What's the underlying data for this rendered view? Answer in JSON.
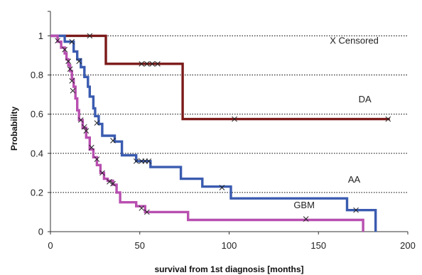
{
  "chart_data": {
    "type": "line",
    "step": true,
    "title": "",
    "xlabel": "survival from 1st diagnosis [months]",
    "ylabel": "Probability",
    "xlim": [
      0,
      200
    ],
    "ylim": [
      0,
      1
    ],
    "xticks": [
      0,
      50,
      100,
      150,
      200
    ],
    "yticks": [
      0,
      0.2,
      0.4,
      0.6,
      0.8,
      1
    ],
    "grid": "horizontal-dotted",
    "annotations": [
      {
        "text": "X Censored",
        "x": 170,
        "y": 0.96
      },
      {
        "text": "DA",
        "x": 176,
        "y": 0.66
      },
      {
        "text": "AA",
        "x": 170,
        "y": 0.25
      },
      {
        "text": "GBM",
        "x": 142,
        "y": 0.12
      }
    ],
    "series": [
      {
        "name": "DA",
        "color": "#7b1a1a",
        "steps": [
          [
            0,
            1.0
          ],
          [
            31,
            0.857
          ],
          [
            74,
            0.575
          ],
          [
            190,
            0.575
          ]
        ],
        "censored": [
          [
            22,
            1.0
          ],
          [
            51,
            0.857
          ],
          [
            54,
            0.857
          ],
          [
            57,
            0.857
          ],
          [
            60,
            0.857
          ],
          [
            103,
            0.575
          ],
          [
            189,
            0.575
          ]
        ]
      },
      {
        "name": "AA",
        "color": "#3a5bb0",
        "steps": [
          [
            0,
            1.0
          ],
          [
            8,
            0.97
          ],
          [
            13,
            0.92
          ],
          [
            15,
            0.88
          ],
          [
            17,
            0.84
          ],
          [
            19,
            0.79
          ],
          [
            21,
            0.74
          ],
          [
            22,
            0.69
          ],
          [
            24,
            0.63
          ],
          [
            25,
            0.59
          ],
          [
            27,
            0.55
          ],
          [
            29,
            0.49
          ],
          [
            36,
            0.46
          ],
          [
            40,
            0.39
          ],
          [
            48,
            0.36
          ],
          [
            56,
            0.33
          ],
          [
            73,
            0.27
          ],
          [
            85,
            0.23
          ],
          [
            101,
            0.17
          ],
          [
            166,
            0.11
          ],
          [
            174,
            0.11
          ],
          [
            182,
            0.0
          ]
        ],
        "censored": [
          [
            12,
            0.97
          ],
          [
            16,
            0.87
          ],
          [
            26,
            0.555
          ],
          [
            35,
            0.465
          ],
          [
            48,
            0.36
          ],
          [
            51,
            0.36
          ],
          [
            53,
            0.36
          ],
          [
            55,
            0.36
          ],
          [
            96,
            0.225
          ],
          [
            171,
            0.11
          ]
        ]
      },
      {
        "name": "GBM",
        "color": "#b84fb0",
        "steps": [
          [
            0,
            1.0
          ],
          [
            4,
            0.97
          ],
          [
            6,
            0.94
          ],
          [
            8,
            0.91
          ],
          [
            9,
            0.88
          ],
          [
            10,
            0.85
          ],
          [
            11,
            0.82
          ],
          [
            12,
            0.78
          ],
          [
            13,
            0.74
          ],
          [
            14,
            0.68
          ],
          [
            15,
            0.62
          ],
          [
            16,
            0.57
          ],
          [
            18,
            0.53
          ],
          [
            20,
            0.48
          ],
          [
            22,
            0.42
          ],
          [
            24,
            0.38
          ],
          [
            26,
            0.34
          ],
          [
            28,
            0.3
          ],
          [
            30,
            0.27
          ],
          [
            32,
            0.26
          ],
          [
            35,
            0.24
          ],
          [
            37,
            0.2
          ],
          [
            39,
            0.15
          ],
          [
            48,
            0.13
          ],
          [
            53,
            0.1
          ],
          [
            77,
            0.06
          ],
          [
            175,
            0.0
          ]
        ],
        "censored": [
          [
            4,
            0.975
          ],
          [
            8,
            0.93
          ],
          [
            10,
            0.87
          ],
          [
            11,
            0.83
          ],
          [
            12,
            0.77
          ],
          [
            12.5,
            0.72
          ],
          [
            17,
            0.57
          ],
          [
            19,
            0.535
          ],
          [
            20,
            0.515
          ],
          [
            23,
            0.43
          ],
          [
            26,
            0.37
          ],
          [
            29,
            0.3
          ],
          [
            33,
            0.255
          ],
          [
            35,
            0.245
          ],
          [
            51,
            0.12
          ],
          [
            54,
            0.1
          ],
          [
            143,
            0.065
          ]
        ]
      }
    ]
  }
}
